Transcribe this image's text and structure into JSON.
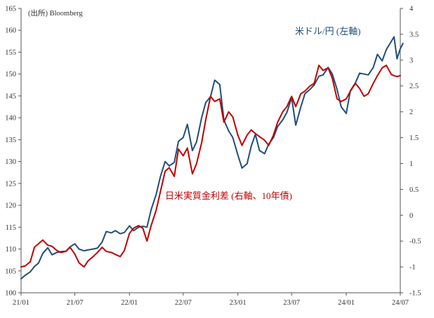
{
  "chart_data": {
    "type": "line",
    "source": "(出所) Bloomberg",
    "x_ticks": [
      "21/01",
      "21/07",
      "22/01",
      "22/07",
      "23/01",
      "23/07",
      "24/01",
      "24/07"
    ],
    "y_left": {
      "ticks": [
        100,
        105,
        110,
        115,
        120,
        125,
        130,
        135,
        140,
        145,
        150,
        155,
        160,
        165
      ],
      "ylim": [
        100,
        165
      ]
    },
    "y_right": {
      "ticks": [
        -1.5,
        -1,
        -0.5,
        0,
        0.5,
        1,
        1.5,
        2,
        2.5,
        3,
        3.5,
        4
      ],
      "ylim": [
        -1.5,
        4
      ]
    },
    "series": [
      {
        "name": "米ドル/円 (左軸)",
        "axis": "left",
        "color": "#1f4e79",
        "points": [
          [
            "2021-01-01",
            103.2
          ],
          [
            "2021-01-15",
            104.0
          ],
          [
            "2021-02-01",
            104.8
          ],
          [
            "2021-02-15",
            106.0
          ],
          [
            "2021-03-01",
            106.8
          ],
          [
            "2021-03-15",
            109.0
          ],
          [
            "2021-04-01",
            110.3
          ],
          [
            "2021-04-15",
            108.7
          ],
          [
            "2021-05-01",
            109.2
          ],
          [
            "2021-05-15",
            109.4
          ],
          [
            "2021-06-01",
            109.5
          ],
          [
            "2021-06-15",
            110.5
          ],
          [
            "2021-07-01",
            111.2
          ],
          [
            "2021-07-15",
            110.0
          ],
          [
            "2021-08-01",
            109.6
          ],
          [
            "2021-08-15",
            109.8
          ],
          [
            "2021-09-01",
            110.0
          ],
          [
            "2021-09-15",
            110.2
          ],
          [
            "2021-10-01",
            111.6
          ],
          [
            "2021-10-15",
            114.0
          ],
          [
            "2021-11-01",
            113.7
          ],
          [
            "2021-11-15",
            114.2
          ],
          [
            "2021-12-01",
            113.5
          ],
          [
            "2021-12-15",
            113.8
          ],
          [
            "2022-01-01",
            115.3
          ],
          [
            "2022-01-15",
            114.2
          ],
          [
            "2022-02-01",
            115.0
          ],
          [
            "2022-02-15",
            115.2
          ],
          [
            "2022-03-01",
            115.0
          ],
          [
            "2022-03-15",
            119.0
          ],
          [
            "2022-04-01",
            122.5
          ],
          [
            "2022-04-15",
            126.5
          ],
          [
            "2022-05-01",
            130.0
          ],
          [
            "2022-05-15",
            129.0
          ],
          [
            "2022-06-01",
            129.8
          ],
          [
            "2022-06-15",
            134.6
          ],
          [
            "2022-07-01",
            135.5
          ],
          [
            "2022-07-15",
            138.5
          ],
          [
            "2022-08-01",
            132.5
          ],
          [
            "2022-08-15",
            134.5
          ],
          [
            "2022-09-01",
            140.0
          ],
          [
            "2022-09-15",
            143.5
          ],
          [
            "2022-10-01",
            144.8
          ],
          [
            "2022-10-15",
            148.6
          ],
          [
            "2022-11-01",
            147.6
          ],
          [
            "2022-11-15",
            139.5
          ],
          [
            "2022-12-01",
            137.0
          ],
          [
            "2022-12-15",
            135.5
          ],
          [
            "2023-01-01",
            131.5
          ],
          [
            "2023-01-15",
            128.5
          ],
          [
            "2023-02-01",
            129.5
          ],
          [
            "2023-02-15",
            133.5
          ],
          [
            "2023-03-01",
            136.2
          ],
          [
            "2023-03-15",
            132.5
          ],
          [
            "2023-04-01",
            131.8
          ],
          [
            "2023-04-15",
            134.0
          ],
          [
            "2023-05-01",
            135.5
          ],
          [
            "2023-05-15",
            138.0
          ],
          [
            "2023-06-01",
            139.5
          ],
          [
            "2023-06-15",
            141.2
          ],
          [
            "2023-07-01",
            144.6
          ],
          [
            "2023-07-15",
            138.3
          ],
          [
            "2023-08-01",
            142.5
          ],
          [
            "2023-08-15",
            145.5
          ],
          [
            "2023-09-01",
            146.5
          ],
          [
            "2023-09-15",
            147.5
          ],
          [
            "2023-10-01",
            149.5
          ],
          [
            "2023-10-15",
            149.8
          ],
          [
            "2023-11-01",
            151.5
          ],
          [
            "2023-11-15",
            150.0
          ],
          [
            "2023-12-01",
            146.5
          ],
          [
            "2023-12-15",
            142.5
          ],
          [
            "2024-01-01",
            141.0
          ],
          [
            "2024-01-15",
            146.2
          ],
          [
            "2024-02-01",
            148.0
          ],
          [
            "2024-02-15",
            150.2
          ],
          [
            "2024-03-01",
            150.0
          ],
          [
            "2024-03-15",
            149.8
          ],
          [
            "2024-04-01",
            151.5
          ],
          [
            "2024-04-15",
            154.5
          ],
          [
            "2024-05-01",
            153.0
          ],
          [
            "2024-05-15",
            155.6
          ],
          [
            "2024-06-01",
            157.5
          ],
          [
            "2024-06-10",
            158.5
          ],
          [
            "2024-06-20",
            153.5
          ],
          [
            "2024-07-01",
            155.8
          ],
          [
            "2024-07-10",
            157.0
          ]
        ]
      },
      {
        "name": "日米実質金利差 (右軸、10年債)",
        "axis": "right",
        "color": "#c00000",
        "points": [
          [
            "2021-01-01",
            -1.0
          ],
          [
            "2021-01-15",
            -0.98
          ],
          [
            "2021-02-01",
            -0.9
          ],
          [
            "2021-02-15",
            -0.62
          ],
          [
            "2021-03-01",
            -0.55
          ],
          [
            "2021-03-15",
            -0.48
          ],
          [
            "2021-04-01",
            -0.58
          ],
          [
            "2021-04-15",
            -0.6
          ],
          [
            "2021-05-01",
            -0.68
          ],
          [
            "2021-05-15",
            -0.72
          ],
          [
            "2021-06-01",
            -0.7
          ],
          [
            "2021-06-15",
            -0.62
          ],
          [
            "2021-07-01",
            -0.75
          ],
          [
            "2021-07-15",
            -0.92
          ],
          [
            "2021-08-01",
            -1.0
          ],
          [
            "2021-08-15",
            -0.88
          ],
          [
            "2021-09-01",
            -0.8
          ],
          [
            "2021-09-15",
            -0.72
          ],
          [
            "2021-10-01",
            -0.62
          ],
          [
            "2021-10-15",
            -0.7
          ],
          [
            "2021-11-01",
            -0.72
          ],
          [
            "2021-11-15",
            -0.76
          ],
          [
            "2021-12-01",
            -0.8
          ],
          [
            "2021-12-15",
            -0.68
          ],
          [
            "2022-01-01",
            -0.35
          ],
          [
            "2022-01-15",
            -0.25
          ],
          [
            "2022-02-01",
            -0.2
          ],
          [
            "2022-02-15",
            -0.25
          ],
          [
            "2022-03-01",
            -0.5
          ],
          [
            "2022-03-15",
            -0.2
          ],
          [
            "2022-04-01",
            0.1
          ],
          [
            "2022-04-15",
            0.45
          ],
          [
            "2022-05-01",
            0.85
          ],
          [
            "2022-05-15",
            0.92
          ],
          [
            "2022-06-01",
            0.75
          ],
          [
            "2022-06-15",
            1.28
          ],
          [
            "2022-07-01",
            1.15
          ],
          [
            "2022-07-15",
            1.3
          ],
          [
            "2022-08-01",
            0.8
          ],
          [
            "2022-08-15",
            1.0
          ],
          [
            "2022-09-01",
            1.4
          ],
          [
            "2022-09-15",
            1.85
          ],
          [
            "2022-10-01",
            2.3
          ],
          [
            "2022-10-15",
            2.2
          ],
          [
            "2022-11-01",
            2.25
          ],
          [
            "2022-11-15",
            1.8
          ],
          [
            "2022-12-01",
            2.0
          ],
          [
            "2022-12-15",
            1.9
          ],
          [
            "2023-01-01",
            1.55
          ],
          [
            "2023-01-15",
            1.35
          ],
          [
            "2023-02-01",
            1.55
          ],
          [
            "2023-02-15",
            1.65
          ],
          [
            "2023-03-01",
            1.58
          ],
          [
            "2023-03-15",
            1.52
          ],
          [
            "2023-04-01",
            1.45
          ],
          [
            "2023-04-15",
            1.35
          ],
          [
            "2023-05-01",
            1.55
          ],
          [
            "2023-05-15",
            1.8
          ],
          [
            "2023-06-01",
            2.0
          ],
          [
            "2023-06-15",
            2.1
          ],
          [
            "2023-07-01",
            2.3
          ],
          [
            "2023-07-15",
            2.1
          ],
          [
            "2023-08-01",
            2.35
          ],
          [
            "2023-08-15",
            2.4
          ],
          [
            "2023-09-01",
            2.5
          ],
          [
            "2023-09-15",
            2.55
          ],
          [
            "2023-10-01",
            2.9
          ],
          [
            "2023-10-15",
            2.8
          ],
          [
            "2023-11-01",
            2.85
          ],
          [
            "2023-11-15",
            2.65
          ],
          [
            "2023-12-01",
            2.25
          ],
          [
            "2023-12-15",
            2.2
          ],
          [
            "2024-01-01",
            2.25
          ],
          [
            "2024-01-15",
            2.4
          ],
          [
            "2024-02-01",
            2.55
          ],
          [
            "2024-02-15",
            2.45
          ],
          [
            "2024-03-01",
            2.3
          ],
          [
            "2024-03-15",
            2.35
          ],
          [
            "2024-04-01",
            2.55
          ],
          [
            "2024-04-15",
            2.7
          ],
          [
            "2024-05-01",
            2.85
          ],
          [
            "2024-05-15",
            2.9
          ],
          [
            "2024-06-01",
            2.72
          ],
          [
            "2024-06-10",
            2.7
          ],
          [
            "2024-06-20",
            2.68
          ],
          [
            "2024-07-01",
            2.7
          ]
        ]
      }
    ]
  }
}
